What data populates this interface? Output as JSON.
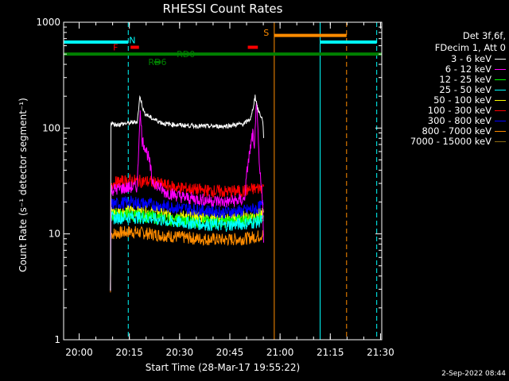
{
  "title": "RHESSI Count Rates",
  "footer": "2-Sep-2022 08:44",
  "legend": {
    "header_line1": "Det 3f,6f,",
    "header_line2": "FDecim 1, Att 0",
    "items": [
      {
        "label": "3 - 6 keV",
        "color": "#000000"
      },
      {
        "label": "6 - 12 keV",
        "color": "#ff00ff"
      },
      {
        "label": "12 - 25 keV",
        "color": "#00ff00"
      },
      {
        "label": "25 - 50 keV",
        "color": "#00ffff"
      },
      {
        "label": "50 - 100 keV",
        "color": "#ffff00"
      },
      {
        "label": "100 - 300 keV",
        "color": "#ff0000"
      },
      {
        "label": "300 - 800 keV",
        "color": "#0000ff"
      },
      {
        "label": "800 - 7000 keV",
        "color": "#ff8c00"
      },
      {
        "label": "7000 - 15000 keV",
        "color": "#8b6914"
      }
    ]
  },
  "chart_data": {
    "type": "line",
    "title": "RHESSI Count Rates",
    "xlabel": "Start Time (28-Mar-17 19:55:22)",
    "ylabel": "Count Rate (s⁻¹ detector segment⁻¹)",
    "x_ticks": [
      "20:00",
      "20:15",
      "20:30",
      "20:45",
      "21:00",
      "21:15",
      "21:30"
    ],
    "y_ticks": [
      "1",
      "10",
      "100",
      "1000"
    ],
    "y_scale": "log",
    "ylim": [
      1,
      1000
    ],
    "xlim_minutes_from_start": [
      0,
      95
    ],
    "series": [
      {
        "name": "3 - 6 keV",
        "color": "#000000",
        "points": [
          [
            14,
            2.9
          ],
          [
            14.1,
            110
          ],
          [
            16,
            108
          ],
          [
            20,
            112
          ],
          [
            22,
            115
          ],
          [
            22.8,
            200
          ],
          [
            24,
            140
          ],
          [
            26,
            125
          ],
          [
            30,
            110
          ],
          [
            36,
            106
          ],
          [
            42,
            104
          ],
          [
            48,
            104
          ],
          [
            54,
            110
          ],
          [
            56,
            125
          ],
          [
            57.2,
            200
          ],
          [
            58,
            150
          ],
          [
            59.5,
            118
          ],
          [
            59.8,
            70
          ]
        ]
      },
      {
        "name": "6 - 12 keV",
        "color": "#ff00ff",
        "points": [
          [
            14,
            2.9
          ],
          [
            14.1,
            26
          ],
          [
            18,
            27
          ],
          [
            22,
            28
          ],
          [
            22.8,
            145
          ],
          [
            23.5,
            75
          ],
          [
            24.5,
            65
          ],
          [
            25.5,
            50
          ],
          [
            26.5,
            32
          ],
          [
            30,
            25
          ],
          [
            36,
            22
          ],
          [
            42,
            21
          ],
          [
            48,
            20
          ],
          [
            54,
            21
          ],
          [
            55,
            45
          ],
          [
            56.5,
            90
          ],
          [
            57,
            55
          ],
          [
            57.5,
            200
          ],
          [
            58.5,
            40
          ],
          [
            59.5,
            20
          ],
          [
            59.8,
            6
          ]
        ]
      },
      {
        "name": "12 - 25 keV",
        "color": "#00ff00",
        "points": [
          [
            14,
            2.9
          ],
          [
            14.1,
            15
          ],
          [
            20,
            15
          ],
          [
            26,
            14.5
          ],
          [
            32,
            13.5
          ],
          [
            40,
            13
          ],
          [
            48,
            13
          ],
          [
            54,
            13.5
          ],
          [
            58,
            14
          ],
          [
            59.8,
            15
          ]
        ]
      },
      {
        "name": "25 - 50 keV",
        "color": "#00ffff",
        "points": [
          [
            14,
            2.9
          ],
          [
            14.1,
            14
          ],
          [
            20,
            14.5
          ],
          [
            26,
            14
          ],
          [
            32,
            13
          ],
          [
            40,
            12.5
          ],
          [
            48,
            12
          ],
          [
            54,
            12.5
          ],
          [
            58,
            13
          ],
          [
            59.8,
            13.5
          ]
        ]
      },
      {
        "name": "50 - 100 keV",
        "color": "#ffff00",
        "points": [
          [
            14,
            2.9
          ],
          [
            14.1,
            16
          ],
          [
            20,
            16.5
          ],
          [
            26,
            16
          ],
          [
            32,
            15
          ],
          [
            40,
            14.5
          ],
          [
            48,
            14
          ],
          [
            54,
            14.5
          ],
          [
            58,
            15
          ],
          [
            59.8,
            16
          ]
        ]
      },
      {
        "name": "100 - 300 keV",
        "color": "#ff0000",
        "points": [
          [
            14,
            2.9
          ],
          [
            14.1,
            30
          ],
          [
            20,
            32
          ],
          [
            26,
            31
          ],
          [
            32,
            28
          ],
          [
            40,
            26
          ],
          [
            48,
            25
          ],
          [
            54,
            25.5
          ],
          [
            58,
            27
          ],
          [
            59.8,
            28
          ]
        ]
      },
      {
        "name": "300 - 800 keV",
        "color": "#0000ff",
        "points": [
          [
            14,
            2.9
          ],
          [
            14.1,
            19
          ],
          [
            20,
            20
          ],
          [
            26,
            19
          ],
          [
            32,
            18
          ],
          [
            40,
            17
          ],
          [
            48,
            16
          ],
          [
            54,
            16.5
          ],
          [
            58,
            17.5
          ],
          [
            59.8,
            19
          ]
        ]
      },
      {
        "name": "800 - 7000 keV",
        "color": "#ff8c00",
        "points": [
          [
            14,
            2.8
          ],
          [
            14.1,
            10
          ],
          [
            20,
            10.5
          ],
          [
            26,
            10
          ],
          [
            32,
            9.5
          ],
          [
            40,
            9
          ],
          [
            48,
            8.8
          ],
          [
            54,
            9
          ],
          [
            58,
            9.5
          ],
          [
            59.8,
            10
          ]
        ]
      },
      {
        "name": "7000 - 15000 keV",
        "color": "#8b6914",
        "points": []
      }
    ],
    "annotations": {
      "dashed_vlines_cyan_min": [
        19.3,
        93.5
      ],
      "dashed_vlines_orange_min": [
        84.5
      ],
      "solid_vlines_cyan_min": [
        0,
        76.6
      ],
      "solid_vlines_orange_min": [
        62.9
      ],
      "green_bar_y": 500,
      "green_bar_range_min": [
        0,
        95
      ],
      "cyan_bars": [
        {
          "range_min": [
            0,
            19.3
          ],
          "y": 650
        },
        {
          "range_min": [
            76.6,
            93.5
          ],
          "y": 650
        }
      ],
      "orange_bar": {
        "range_min": [
          62.9,
          84.5
        ],
        "y": 750
      },
      "red_marks": [
        {
          "range_min": [
            20,
            22.5
          ],
          "y": 580
        },
        {
          "range_min": [
            55,
            58
          ],
          "y": 580
        }
      ],
      "labels": {
        "N": {
          "text": "N",
          "color": "#00ffff",
          "x_min": 20.5,
          "y": 680
        },
        "F": {
          "text": "F",
          "color": "#ff0000",
          "x_min": 15.5,
          "y": 580
        },
        "S": {
          "text": "S",
          "color": "#ff8c00",
          "x_min": 60.5,
          "y": 800
        },
        "RD0": {
          "text": "RD0",
          "color": "#008000",
          "x_min": 36.5,
          "y": 500
        },
        "RD6": {
          "text": "RD6",
          "color": "#008000",
          "x_min": 28,
          "y": 420
        }
      }
    }
  }
}
